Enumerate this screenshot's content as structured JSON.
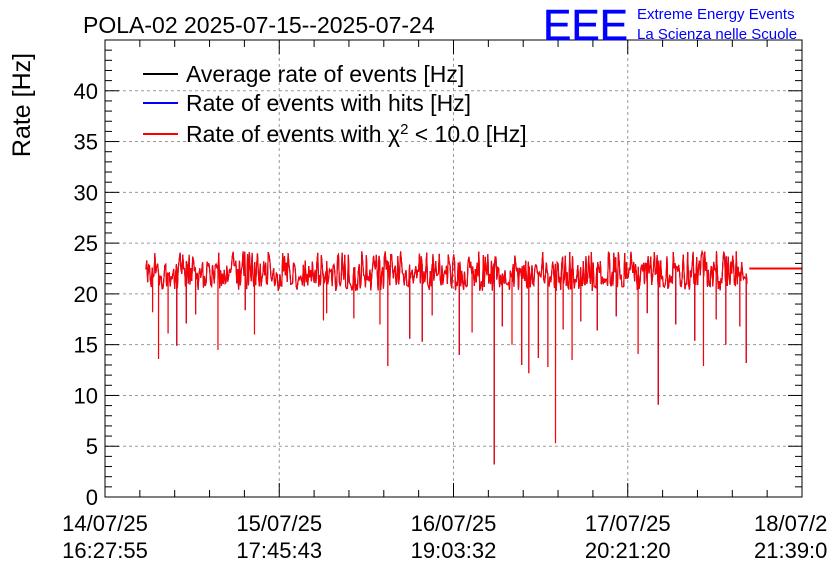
{
  "chart_data": {
    "type": "line",
    "title": "POLA-02 2025-07-15--2025-07-24",
    "ylabel": "Rate [Hz]",
    "xlabel": "",
    "ylim": [
      0,
      45
    ],
    "y_ticks": [
      0,
      5,
      10,
      15,
      20,
      25,
      30,
      35,
      40
    ],
    "x_tick_labels": [
      {
        "date": "14/07/25",
        "time": "16:27:55"
      },
      {
        "date": "15/07/25",
        "time": "17:45:43"
      },
      {
        "date": "16/07/25",
        "time": "19:03:32"
      },
      {
        "date": "17/07/25",
        "time": "20:21:20"
      },
      {
        "date": "18/07/2",
        "time": "21:39:0"
      }
    ],
    "xlim": [
      "2025-07-14 16:27:55",
      "2025-07-18 21:39:08"
    ],
    "grid": true,
    "legend_position": "top-left",
    "series": [
      {
        "name": "Average rate of events [Hz]",
        "color": "#000000",
        "baseline": 22.0
      },
      {
        "name": "Rate of events with hits [Hz]",
        "color": "#0000ff",
        "baseline": 22.0
      },
      {
        "name": "Rate of events with χ² < 10.0 [Hz]",
        "color": "#ff0000",
        "baseline": 22.0,
        "band": [
          20.3,
          24.2
        ],
        "x_range": [
          "2025-07-14 22:24",
          "2025-07-18 13:41"
        ],
        "constant_after": {
          "from": "2025-07-18 14:00",
          "value": 22.5
        },
        "dips": [
          {
            "x": "2025-07-14 23:22",
            "y": 18.2
          },
          {
            "x": "2025-07-15 00:14",
            "y": 13.6
          },
          {
            "x": "2025-07-15 01:37",
            "y": 16.1
          },
          {
            "x": "2025-07-15 02:53",
            "y": 14.9
          },
          {
            "x": "2025-07-15 04:16",
            "y": 17.1
          },
          {
            "x": "2025-07-15 05:37",
            "y": 18.0
          },
          {
            "x": "2025-07-15 08:52",
            "y": 14.5
          },
          {
            "x": "2025-07-15 12:49",
            "y": 18.4
          },
          {
            "x": "2025-07-15 14:10",
            "y": 16.0
          },
          {
            "x": "2025-07-16 00:11",
            "y": 17.4
          },
          {
            "x": "2025-07-16 00:38",
            "y": 18.1
          },
          {
            "x": "2025-07-16 04:36",
            "y": 17.6
          },
          {
            "x": "2025-07-16 08:23",
            "y": 17.0
          },
          {
            "x": "2025-07-16 09:32",
            "y": 12.9
          },
          {
            "x": "2025-07-16 12:42",
            "y": 15.6
          },
          {
            "x": "2025-07-16 14:31",
            "y": 15.3
          },
          {
            "x": "2025-07-16 15:57",
            "y": 17.9
          },
          {
            "x": "2025-07-16 19:54",
            "y": 14.0
          },
          {
            "x": "2025-07-16 21:45",
            "y": 16.2
          },
          {
            "x": "2025-07-17 00:58",
            "y": 3.2
          },
          {
            "x": "2025-07-17 02:09",
            "y": 16.8
          },
          {
            "x": "2025-07-17 03:33",
            "y": 15.0
          },
          {
            "x": "2025-07-17 04:57",
            "y": 13.0
          },
          {
            "x": "2025-07-17 06:00",
            "y": 12.2
          },
          {
            "x": "2025-07-17 07:23",
            "y": 13.7
          },
          {
            "x": "2025-07-17 08:46",
            "y": 12.8
          },
          {
            "x": "2025-07-17 09:52",
            "y": 5.3
          },
          {
            "x": "2025-07-17 10:58",
            "y": 16.5
          },
          {
            "x": "2025-07-17 12:16",
            "y": 13.5
          },
          {
            "x": "2025-07-17 13:33",
            "y": 17.3
          },
          {
            "x": "2025-07-17 15:56",
            "y": 16.4
          },
          {
            "x": "2025-07-17 18:41",
            "y": 17.8
          },
          {
            "x": "2025-07-17 21:51",
            "y": 14.1
          },
          {
            "x": "2025-07-17 23:11",
            "y": 18.1
          },
          {
            "x": "2025-07-18 00:47",
            "y": 9.1
          },
          {
            "x": "2025-07-18 03:19",
            "y": 17.0
          },
          {
            "x": "2025-07-18 06:05",
            "y": 15.4
          },
          {
            "x": "2025-07-18 07:21",
            "y": 12.9
          },
          {
            "x": "2025-07-18 09:11",
            "y": 17.5
          },
          {
            "x": "2025-07-18 10:36",
            "y": 15.0
          },
          {
            "x": "2025-07-18 12:38",
            "y": 16.8
          },
          {
            "x": "2025-07-18 13:33",
            "y": 13.2
          }
        ]
      }
    ]
  },
  "logo": {
    "text": "EEE",
    "line1": "Extreme Energy Events",
    "line2": "La Scienza nelle Scuole",
    "color": "#0000ff"
  }
}
